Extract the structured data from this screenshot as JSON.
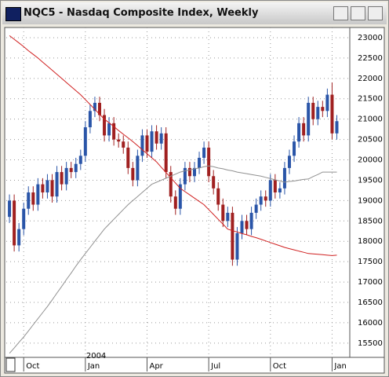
{
  "window_title": "NQC5 - Nasdaq Composite Index, Weekly",
  "chart_data": {
    "type": "candlestick",
    "up_color": "#2a55a8",
    "down_color": "#a02020",
    "open": [
      18600,
      19000,
      17900,
      18300,
      18800,
      19200,
      18900,
      19400,
      19200,
      19500,
      19100,
      19700,
      19400,
      19800,
      19700,
      19900,
      20100,
      20800,
      21200,
      21400,
      21100,
      20600,
      20900,
      20500,
      20450,
      20300,
      19800,
      19500,
      20100,
      20600,
      20200,
      20700,
      20400,
      20650,
      19700,
      19100,
      18800,
      19400,
      19800,
      19600,
      19800,
      20050,
      20300,
      19600,
      19300,
      18900,
      18500,
      18700,
      17550,
      18200,
      18500,
      18300,
      18700,
      18900,
      19100,
      19000,
      19500,
      19200,
      19300,
      19800,
      20100,
      20450,
      20900,
      20600,
      21400,
      21000,
      21300,
      21200,
      21600,
      20650
    ],
    "high": [
      19150,
      19150,
      18450,
      18950,
      19350,
      19350,
      19550,
      19550,
      19650,
      19650,
      19850,
      19850,
      19950,
      19950,
      20050,
      20250,
      20950,
      21350,
      21550,
      21550,
      21250,
      21050,
      21050,
      20650,
      20600,
      20450,
      19950,
      20250,
      20750,
      20750,
      20850,
      20850,
      20800,
      20800,
      19850,
      19250,
      19550,
      19950,
      19950,
      19950,
      20200,
      20450,
      20450,
      19750,
      19450,
      19050,
      18850,
      18850,
      18350,
      18650,
      18650,
      18850,
      19050,
      19250,
      19250,
      19650,
      19650,
      19450,
      19950,
      20250,
      20600,
      21050,
      21050,
      21550,
      21550,
      21450,
      21450,
      21750,
      21900,
      21100
    ],
    "low": [
      18450,
      17750,
      17750,
      18150,
      18650,
      18750,
      18750,
      19050,
      19050,
      18950,
      18950,
      19250,
      19250,
      19550,
      19550,
      19750,
      19950,
      20650,
      21050,
      20950,
      20450,
      20450,
      20350,
      20300,
      20150,
      19650,
      19350,
      19350,
      19950,
      20050,
      20050,
      20250,
      20250,
      19550,
      18950,
      18650,
      18650,
      19250,
      19450,
      19450,
      19650,
      19900,
      19450,
      19150,
      18750,
      18350,
      18350,
      17400,
      17400,
      18050,
      18150,
      18150,
      18550,
      18750,
      18850,
      18850,
      19050,
      19050,
      19150,
      19650,
      19950,
      20300,
      20450,
      20450,
      20850,
      20850,
      21050,
      21050,
      20500,
      20500
    ],
    "close": [
      19000,
      17900,
      18300,
      18800,
      19200,
      18900,
      19400,
      19200,
      19500,
      19100,
      19700,
      19400,
      19800,
      19700,
      19900,
      20100,
      20800,
      21200,
      21400,
      21100,
      20600,
      20900,
      20500,
      20450,
      20300,
      19800,
      19500,
      20100,
      20600,
      20200,
      20700,
      20400,
      20650,
      19700,
      19100,
      18800,
      19400,
      19800,
      19600,
      19800,
      20050,
      20300,
      19600,
      19300,
      18900,
      18500,
      18700,
      17550,
      18200,
      18500,
      18300,
      18700,
      18900,
      19100,
      19000,
      19500,
      19200,
      19300,
      19800,
      20100,
      20450,
      20900,
      20600,
      21400,
      21000,
      21300,
      21200,
      21600,
      20650,
      20950
    ],
    "series": [
      {
        "color": "#d02020",
        "values": [
          23050,
          22960,
          22870,
          22780,
          22680,
          22590,
          22500,
          22400,
          22300,
          22200,
          22100,
          22000,
          21900,
          21800,
          21700,
          21600,
          21480,
          21360,
          21240,
          21120,
          21000,
          20910,
          20820,
          20720,
          20630,
          20540,
          20450,
          20350,
          20250,
          20150,
          20050,
          19950,
          19820,
          19690,
          19560,
          19430,
          19300,
          19220,
          19140,
          19060,
          18980,
          18900,
          18780,
          18660,
          18540,
          18420,
          18300,
          18260,
          18230,
          18190,
          18160,
          18120,
          18090,
          18050,
          18010,
          17970,
          17930,
          17890,
          17850,
          17820,
          17790,
          17760,
          17730,
          17700,
          17690,
          17680,
          17670,
          17660,
          17650,
          17660
        ]
      },
      {
        "color": "#909090",
        "values": [
          15250,
          15380,
          15520,
          15650,
          15800,
          15950,
          16100,
          16250,
          16400,
          16560,
          16730,
          16890,
          17060,
          17220,
          17390,
          17550,
          17700,
          17850,
          18000,
          18150,
          18300,
          18420,
          18540,
          18660,
          18780,
          18900,
          19000,
          19100,
          19200,
          19300,
          19400,
          19450,
          19500,
          19550,
          19600,
          19650,
          19700,
          19730,
          19750,
          19780,
          19800,
          19830,
          19850,
          19830,
          19800,
          19780,
          19750,
          19730,
          19700,
          19680,
          19660,
          19640,
          19620,
          19600,
          19570,
          19540,
          19510,
          19480,
          19450,
          19470,
          19480,
          19500,
          19520,
          19530,
          19590,
          19640,
          19700,
          19700,
          19700,
          19700
        ]
      }
    ],
    "ylim": [
      15150,
      23250
    ],
    "yticks": [
      15500,
      16000,
      16500,
      17000,
      17500,
      18000,
      18500,
      19000,
      19500,
      20000,
      20500,
      21000,
      21500,
      22000,
      22500,
      23000
    ],
    "xlim": [
      -0.67,
      71.4
    ],
    "xticks": [
      {
        "value": 3,
        "label": "Oct"
      },
      {
        "value": 16,
        "label": "Jan"
      },
      {
        "value": 29,
        "label": "Apr"
      },
      {
        "value": 42,
        "label": "Jul"
      },
      {
        "value": 55,
        "label": "Oct"
      },
      {
        "value": 68,
        "label": "Jan"
      }
    ],
    "year_label": "2004",
    "grid": true
  }
}
